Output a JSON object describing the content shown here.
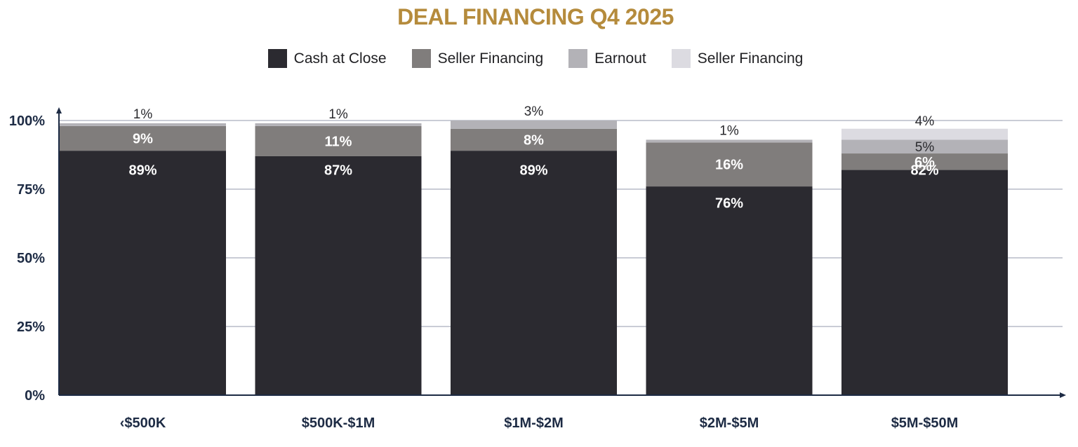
{
  "chart_data": {
    "type": "bar",
    "stacked": true,
    "title": "DEAL FINANCING Q4 2025",
    "categories": [
      "‹$500K",
      "$500K-$1M",
      "$1M-$2M",
      "$2M-$5M",
      "$5M-$50M"
    ],
    "series": [
      {
        "name": "Cash at Close",
        "color": "#2b2a30",
        "values": [
          89,
          87,
          89,
          76,
          82
        ],
        "labels": [
          "89%",
          "87%",
          "89%",
          "76%",
          "82%"
        ]
      },
      {
        "name": "Seller Financing",
        "color": "#807d7c",
        "values": [
          9,
          11,
          8,
          16,
          6
        ],
        "labels": [
          "9%",
          "11%",
          "8%",
          "16%",
          "6%"
        ]
      },
      {
        "name": "Earnout",
        "color": "#b3b2b7",
        "values": [
          1,
          1,
          3,
          1,
          5
        ],
        "labels": [
          "1%",
          "1%",
          "3%",
          "1%",
          "5%"
        ]
      },
      {
        "name": "Seller Financing",
        "color": "#dcdbe1",
        "values": [
          0,
          0,
          0,
          0,
          4
        ],
        "labels": [
          "",
          "",
          "",
          "",
          "4%"
        ]
      }
    ],
    "y_ticks": [
      "0%",
      "25%",
      "50%",
      "75%",
      "100%"
    ],
    "ylim": [
      0,
      100
    ],
    "grid": true,
    "legend_position": "top-center",
    "title_color": "#b58b3c",
    "axis_color": "#1d2b44",
    "grid_color": "#c9ccd6"
  }
}
